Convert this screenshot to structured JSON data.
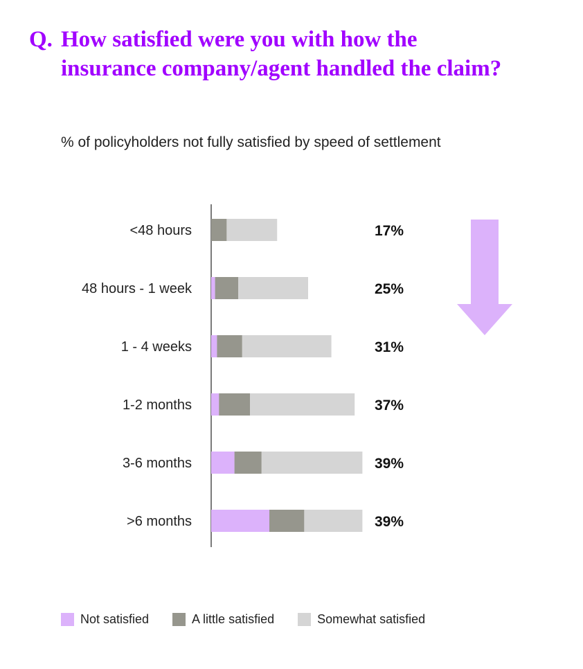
{
  "title": {
    "prefix": "Q.",
    "line1": "How satisfied were you with how the",
    "line2": "insurance company/agent handled the claim?"
  },
  "subtitle": "% of policyholders not fully satisfied by speed of settlement",
  "colors": {
    "title": "#a100ff",
    "not_satisfied": "#dcb2fb",
    "a_little_satisfied": "#96968d",
    "somewhat_satisfied": "#d5d5d5",
    "arrow": "#dcb2fb"
  },
  "arrow_icon": "down-arrow-icon",
  "chart_data": {
    "type": "bar",
    "orientation": "horizontal",
    "stacked": true,
    "categories": [
      "<48 hours",
      "48 hours - 1 week",
      "1 - 4 weeks",
      "1-2 months",
      "3-6 months",
      ">6 months"
    ],
    "series": [
      {
        "name": "Not satisfied",
        "values": [
          0,
          1,
          1.5,
          2,
          6,
          15
        ]
      },
      {
        "name": "A little satisfied",
        "values": [
          4,
          6,
          6.5,
          8,
          7,
          9
        ]
      },
      {
        "name": "Somewhat satisfied",
        "values": [
          13,
          18,
          23,
          27,
          26,
          15
        ]
      }
    ],
    "totals": [
      17,
      25,
      31,
      37,
      39,
      39
    ],
    "total_labels": [
      "17%",
      "25%",
      "31%",
      "37%",
      "39%",
      "39%"
    ],
    "xlim": [
      0,
      50
    ],
    "grid": false,
    "axis_tick_labels": false,
    "legend_position": "bottom"
  }
}
